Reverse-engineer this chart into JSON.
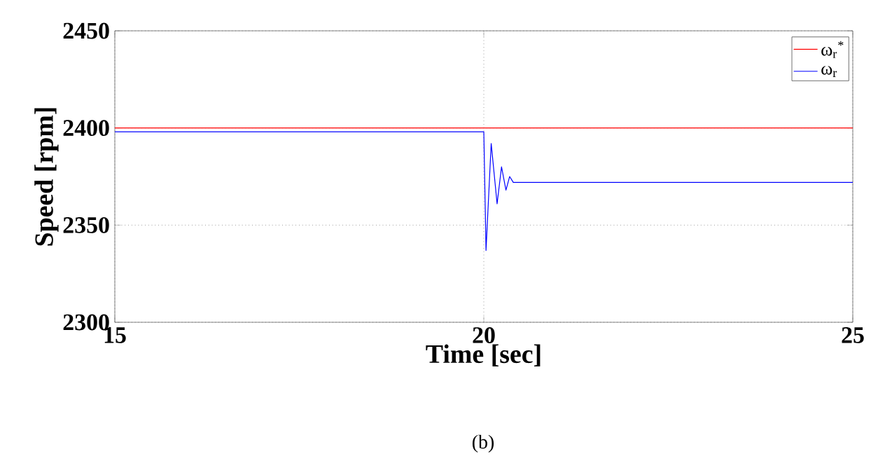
{
  "chart_data": {
    "type": "line",
    "xlabel": "Time [sec]",
    "ylabel": "Speed [rpm]",
    "xlim": [
      15,
      25
    ],
    "ylim": [
      2300,
      2450
    ],
    "xticks": [
      15,
      20,
      25
    ],
    "yticks": [
      2300,
      2350,
      2400,
      2450
    ],
    "grid": true,
    "legend": "top right",
    "line_style": "solid",
    "marker": "none",
    "series": [
      {
        "name": "ω$_{r}$$^{*}$",
        "color": "#ff0000",
        "x": [
          15,
          25
        ],
        "values": [
          2400,
          2400
        ]
      },
      {
        "name": "ω$_{r}$",
        "color": "#0000ff",
        "x": [
          15,
          20,
          20.03,
          20.1,
          20.18,
          20.24,
          20.3,
          20.35,
          20.4,
          21,
          22,
          23,
          24,
          25
        ],
        "values": [
          2398,
          2398,
          2337,
          2392,
          2361,
          2380,
          2368,
          2375,
          2372,
          2372,
          2372,
          2372,
          2372,
          2372
        ]
      }
    ],
    "annotations": [
      "(b)"
    ]
  }
}
